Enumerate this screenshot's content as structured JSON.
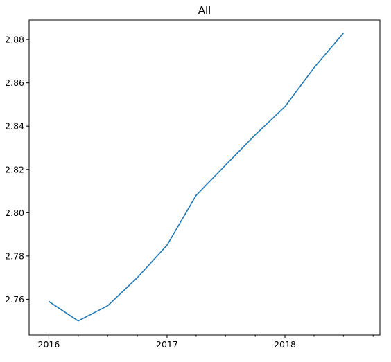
{
  "chart_data": {
    "type": "line",
    "title": "All",
    "xlabel": "",
    "ylabel": "",
    "grid": false,
    "x_tick_labels": [
      "2016",
      "2017",
      "2018"
    ],
    "y_ticks": [
      2.76,
      2.78,
      2.8,
      2.82,
      2.84,
      2.86,
      2.88
    ],
    "y_tick_labels": [
      "2.76",
      "2.78",
      "2.80",
      "2.82",
      "2.84",
      "2.86",
      "2.88"
    ],
    "ylim": [
      2.7435,
      2.889
    ],
    "xlim": [
      "2015-11-01",
      "2018-10-22"
    ],
    "series": [
      {
        "color": "#1f77b4",
        "x": [
          "2016-01-01",
          "2016-04-01",
          "2016-07-01",
          "2016-10-01",
          "2017-01-01",
          "2017-04-01",
          "2017-07-01",
          "2017-10-01",
          "2018-01-01",
          "2018-04-01",
          "2018-07-01"
        ],
        "values": [
          2.759,
          2.75,
          2.757,
          2.77,
          2.785,
          2.808,
          2.822,
          2.836,
          2.849,
          2.867,
          2.883
        ]
      }
    ]
  }
}
